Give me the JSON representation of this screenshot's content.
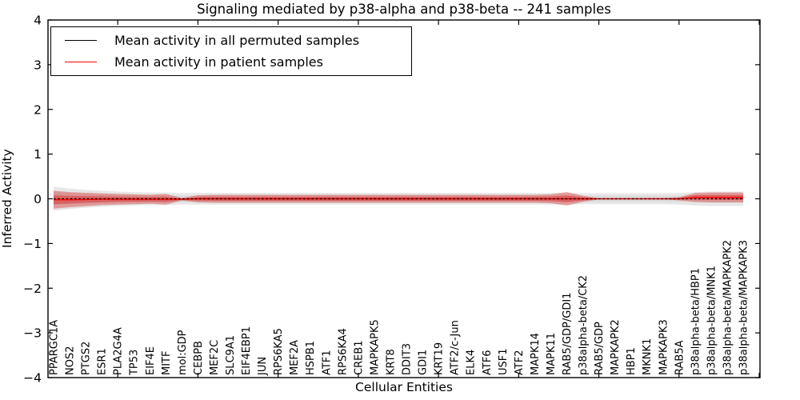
{
  "title": "Signaling mediated by p38-alpha and p38-beta -- 241 samples",
  "legend": [
    {
      "label": "Mean activity in all permuted samples",
      "color": "#000000"
    },
    {
      "label": "Mean activity in patient samples",
      "color": "#ff0000"
    }
  ],
  "chart_data": {
    "type": "area",
    "title": "Signaling mediated by p38-alpha and p38-beta -- 241 samples",
    "xlabel": "Cellular Entities",
    "ylabel": "Inferred Activity",
    "ylim": [
      -4,
      4
    ],
    "yticks": [
      4,
      3,
      2,
      1,
      0,
      -1,
      -2,
      -3,
      -4
    ],
    "yticklabels": [
      "4",
      "3",
      "2",
      "1",
      "0",
      "−1",
      "−2",
      "−3",
      "−4"
    ],
    "xticks_major_every": 5,
    "grid": false,
    "legend_position": "upper left",
    "categories": [
      "PPARGC1A",
      "NOS2",
      "PTGS2",
      "ESR1",
      "PLA2G4A",
      "TP53",
      "EIF4E",
      "MITF",
      "mol:GDP",
      "CEBPB",
      "MEF2C",
      "SLC9A1",
      "EIF4EBP1",
      "JUN",
      "RPS6KA5",
      "MEF2A",
      "HSPB1",
      "ATF1",
      "RPS6KA4",
      "CREB1",
      "MAPKAPK5",
      "KRT8",
      "DDIT3",
      "GDI1",
      "KRT19",
      "ATF2/c-Jun",
      "ELK4",
      "ATF6",
      "USF1",
      "ATF2",
      "MAPK14",
      "MAPK11",
      "RAB5/GDP/GDI1",
      "p38alpha-beta/CK2",
      "RAB5/GDP",
      "MAPKAPK2",
      "HBP1",
      "MKNK1",
      "MAPKAPK3",
      "RAB5A",
      "p38alpha-beta/HBP1",
      "p38alpha-beta/MNK1",
      "p38alpha-beta/MAPKAPK2",
      "p38alpha-beta/MAPKAPK3"
    ],
    "series": [
      {
        "name": "Mean activity in all permuted samples",
        "color": "#000000",
        "style": "dashed-over-red",
        "values": [
          0,
          0,
          0,
          0,
          0,
          0,
          0,
          0,
          0,
          0,
          0,
          0,
          0,
          0,
          0,
          0,
          0,
          0,
          0,
          0,
          0,
          0,
          0,
          0,
          0,
          0,
          0,
          0,
          0,
          0,
          0,
          0,
          0,
          0,
          0,
          0,
          0,
          0,
          0,
          0,
          0,
          0,
          0,
          0
        ]
      },
      {
        "name": "Mean activity in patient samples",
        "color": "#ff0000",
        "style": "solid",
        "values": [
          -0.02,
          -0.02,
          -0.015,
          -0.01,
          -0.01,
          -0.01,
          -0.01,
          -0.01,
          -0.01,
          0,
          0,
          0,
          0,
          0,
          0,
          0,
          0,
          0,
          0,
          0,
          0,
          0,
          0,
          0,
          0,
          0,
          0,
          0,
          0,
          0,
          0,
          0,
          0,
          0,
          0,
          0,
          0,
          0,
          0,
          0,
          0.03,
          0.03,
          0.03,
          0.03
        ]
      },
      {
        "name": "permuted-samples-spread-halfwidth",
        "color": "#e6e6e6",
        "style": "band",
        "values": [
          0.27,
          0.23,
          0.2,
          0.18,
          0.16,
          0.15,
          0.14,
          0.14,
          0.13,
          0.13,
          0.13,
          0.13,
          0.13,
          0.13,
          0.13,
          0.13,
          0.13,
          0.13,
          0.13,
          0.13,
          0.13,
          0.13,
          0.13,
          0.13,
          0.13,
          0.13,
          0.13,
          0.13,
          0.13,
          0.13,
          0.13,
          0.13,
          0.13,
          0.12,
          0.12,
          0.12,
          0.12,
          0.12,
          0.12,
          0.13,
          0.15,
          0.16,
          0.16,
          0.16
        ]
      },
      {
        "name": "patient-samples-spread-halfwidth",
        "color": "#d62728",
        "style": "band",
        "values": [
          0.2,
          0.17,
          0.15,
          0.13,
          0.12,
          0.11,
          0.1,
          0.12,
          0.03,
          0.08,
          0.09,
          0.09,
          0.09,
          0.09,
          0.09,
          0.09,
          0.09,
          0.09,
          0.09,
          0.09,
          0.09,
          0.09,
          0.09,
          0.09,
          0.09,
          0.09,
          0.09,
          0.09,
          0.09,
          0.09,
          0.09,
          0.1,
          0.15,
          0.07,
          0.012,
          0.012,
          0.012,
          0.012,
          0.012,
          0.035,
          0.1,
          0.11,
          0.11,
          0.11
        ]
      }
    ]
  }
}
